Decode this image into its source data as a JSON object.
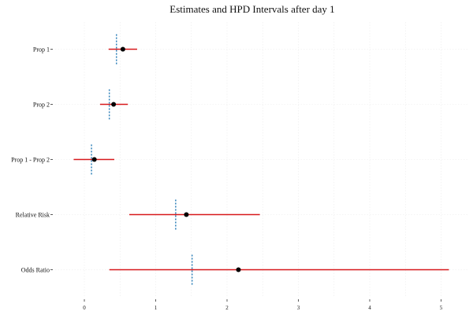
{
  "chart_data": {
    "type": "forest",
    "title": "Estimates and HPD Intervals after day 1",
    "xlabel": "",
    "ylabel": "",
    "xlim": [
      -0.35,
      5.4
    ],
    "xticks": [
      0,
      1,
      2,
      3,
      4,
      5
    ],
    "xtick_labels": [
      "0",
      "1",
      "2",
      "3",
      "4",
      "5"
    ],
    "grid": true,
    "interval_color": "#d7191c",
    "point_color": "#000000",
    "reference_color": "#2c7fb8",
    "rows": [
      {
        "label": "Prop 1",
        "estimate": 0.54,
        "lower": 0.34,
        "upper": 0.74,
        "reference": 0.45
      },
      {
        "label": "Prop 2",
        "estimate": 0.41,
        "lower": 0.22,
        "upper": 0.61,
        "reference": 0.35
      },
      {
        "label": "Prop 1 - Prop 2",
        "estimate": 0.14,
        "lower": -0.15,
        "upper": 0.42,
        "reference": 0.1
      },
      {
        "label": "Relative Risk",
        "estimate": 1.43,
        "lower": 0.63,
        "upper": 2.46,
        "reference": 1.28
      },
      {
        "label": "Odds Ratio",
        "estimate": 2.16,
        "lower": 0.35,
        "upper": 5.11,
        "reference": 1.51
      }
    ]
  }
}
